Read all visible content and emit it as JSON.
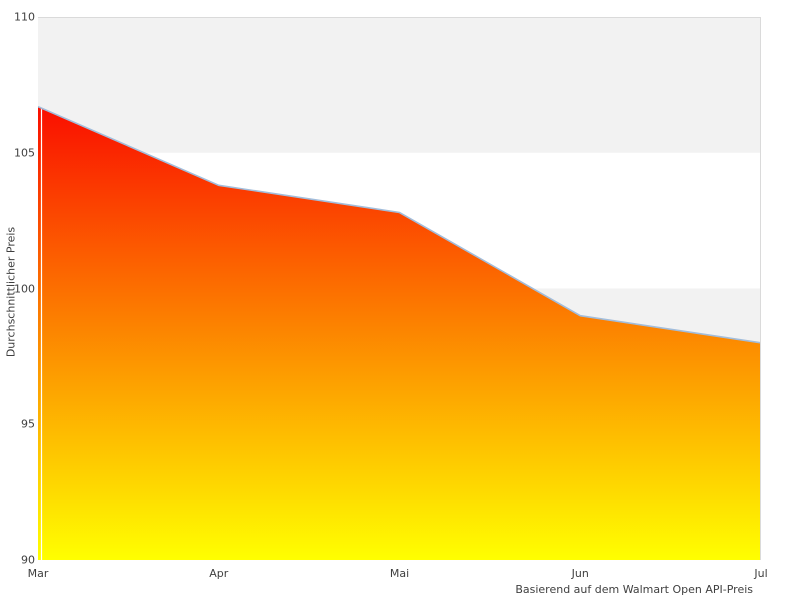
{
  "chart_data": {
    "type": "area",
    "x_categories": [
      "Mar",
      "Apr",
      "Mai",
      "Jun",
      "Jul"
    ],
    "series": [
      {
        "name": "Durchschnittlicher Preis",
        "values": [
          106.7,
          103.8,
          102.8,
          99,
          98
        ]
      }
    ],
    "ylabel": "Durchschnittlicher Preis",
    "xlabel": "",
    "title": "",
    "caption": "Basierend auf dem Walmart Open API-Preis",
    "ylim": [
      90,
      110
    ],
    "yticks": [
      90,
      95,
      100,
      105,
      110
    ],
    "legend_position": "none",
    "grid": "alternating-horizontal-bands",
    "colors": {
      "fill_top": "#fa0e00",
      "fill_bottom": "#ffff00",
      "line": "#a2bddb",
      "band": "#f2f2f2",
      "plot_border": "#dadada",
      "text": "#3f3f3f",
      "background": "#ffffff",
      "left_edge_separator": "#ffffff"
    }
  }
}
